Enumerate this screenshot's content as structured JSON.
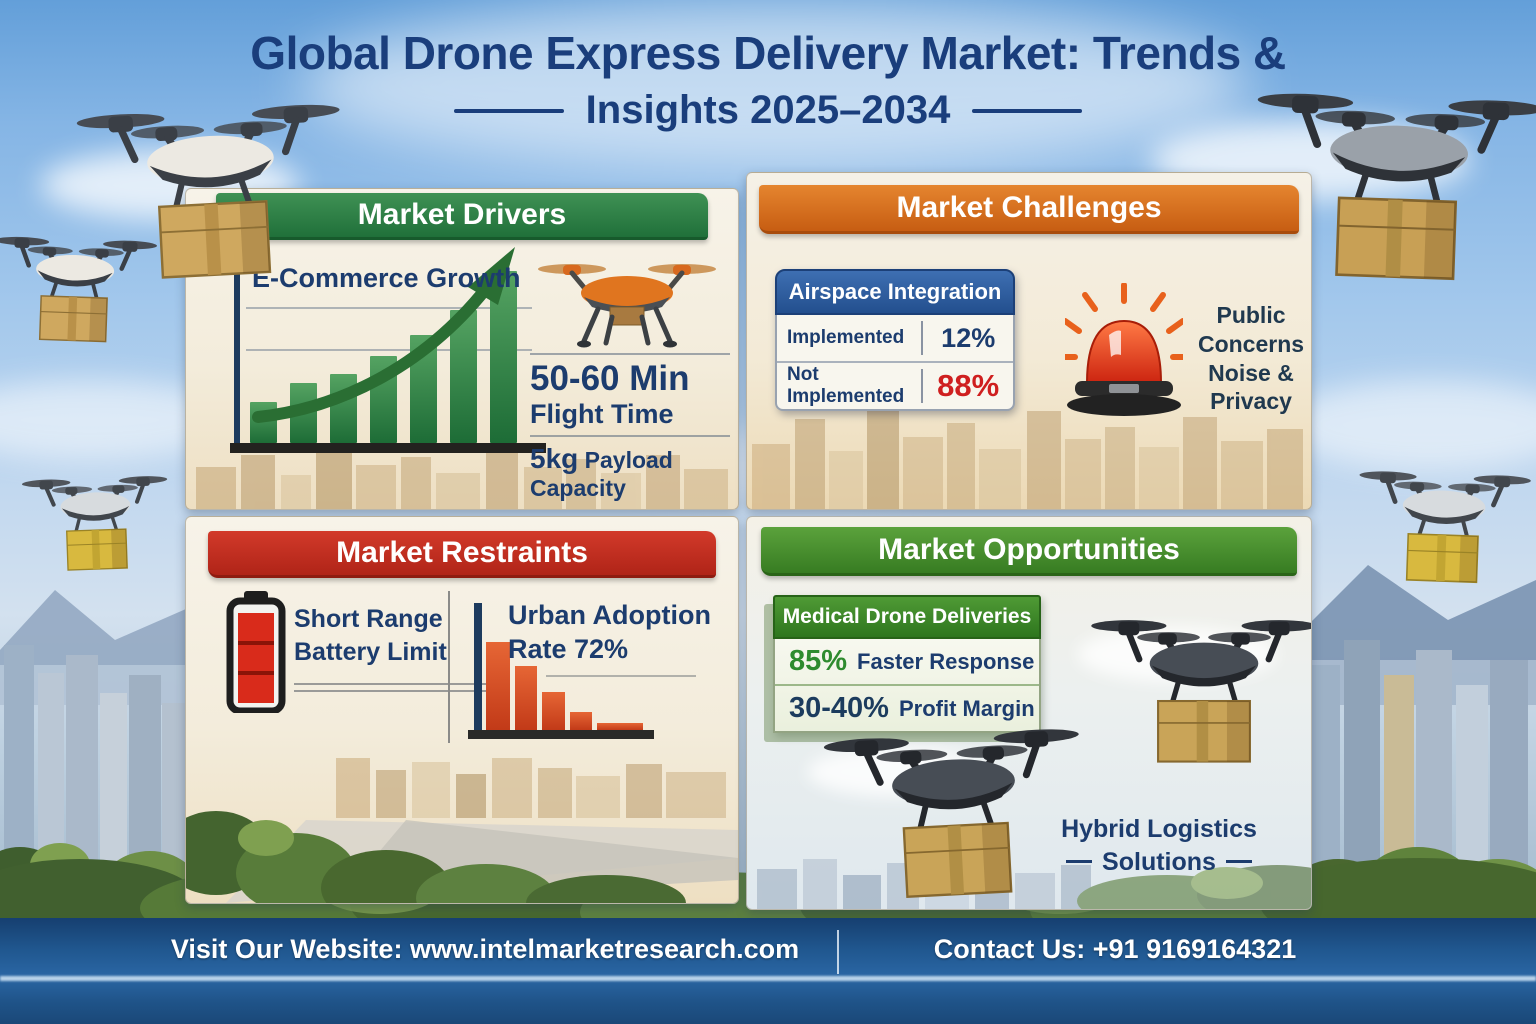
{
  "title": {
    "line1": "Global Drone Express Delivery Market: Trends &",
    "line2": "Insights 2025–2034"
  },
  "panels": {
    "drivers": {
      "header": "Market Drivers",
      "chart_title": "E-Commerce Growth",
      "flight_time_value": "50-60 Min",
      "flight_time_label": "Flight Time",
      "payload_value": "5kg",
      "payload_label": " Payload Capacity"
    },
    "challenges": {
      "header": "Market Challenges",
      "table_title": "Airspace Integration",
      "rows": [
        {
          "label": "Implemented",
          "value": "12%"
        },
        {
          "label": "Not Implemented",
          "value": "88%"
        }
      ],
      "concern_lines": [
        "Public",
        "Concerns",
        "Noise &",
        "Privacy"
      ]
    },
    "restraints": {
      "header": "Market Restraints",
      "battery_line1": "Short Range",
      "battery_line2": "Battery Limit",
      "adoption_line1": "Urban Adoption",
      "adoption_line2": "Rate 72%"
    },
    "opportunities": {
      "header": "Market Opportunities",
      "card_title": "Medical Drone Deliveries",
      "stats": [
        {
          "value": "85%",
          "label": "Faster Response"
        },
        {
          "value": "30-40%",
          "label": "Profit Margin"
        }
      ],
      "hybrid_line1": "Hybrid Logistics",
      "hybrid_line2": "Solutions"
    }
  },
  "footer": {
    "website_label": "Visit Our Website: ",
    "website": "www.intelmarketresearch.com",
    "contact_label": "Contact Us: ",
    "contact": "+91 9169164321"
  },
  "colors": {
    "title_navy": "#1a3e7c",
    "drivers_green": "#2e7d46",
    "challenges_orange": "#d4661f",
    "restraints_red": "#c22b1c",
    "opportunities_green": "#4b8d2f",
    "table_blue": "#2b5ca3",
    "alert_red": "#cf1f1f",
    "stat_green": "#2e8b2e",
    "footer_blue": "#20578f"
  },
  "chart_data": [
    {
      "type": "bar",
      "title": "E-Commerce Growth",
      "values": [
        18,
        26,
        30,
        38,
        47,
        58,
        75
      ],
      "bar_color": "#2f7d3f",
      "note": "7 rising green bars with upward curved arrow, 2 gridlines, unlabeled axes"
    },
    {
      "type": "bar",
      "title": "Urban Adoption Rate 72%",
      "values": [
        72,
        52,
        31,
        15,
        6
      ],
      "bar_color": "#d84f28",
      "note": "5 declining orange-red bars, navy y-axis, dark baseline, unlabeled axes"
    },
    {
      "type": "table",
      "title": "Airspace Integration",
      "rows": [
        [
          "Implemented",
          "12%"
        ],
        [
          "Not Implemented",
          "88%"
        ]
      ]
    }
  ]
}
